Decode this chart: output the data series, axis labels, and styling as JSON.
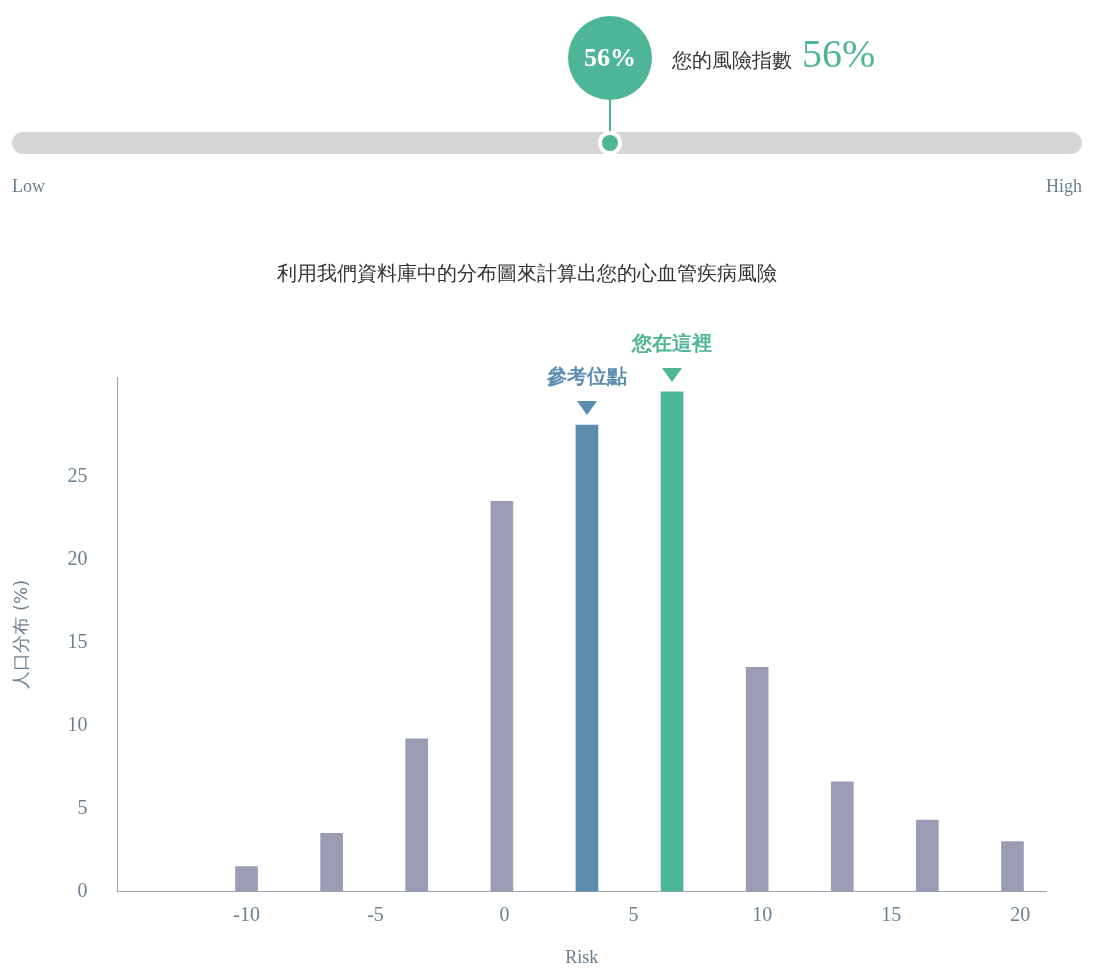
{
  "chart_data": [
    {
      "type": "other",
      "title": "您的風險指數",
      "values": [
        56
      ],
      "value_labels": [
        "56%"
      ],
      "colors": [
        "#4fb597"
      ],
      "annotations": [
        "Low",
        "High"
      ]
    },
    {
      "type": "bar",
      "title": "利用我們資料庫中的分布圖來計算出您的心血管疾病風險",
      "xlabel": "Risk",
      "ylabel": "人口分布 (%)",
      "x": [
        -10,
        -6.7,
        -3.4,
        -0.1,
        3.2,
        6.5,
        9.8,
        13.1,
        16.4,
        19.7
      ],
      "values": [
        1.5,
        3.5,
        9.2,
        23.5,
        28.1,
        30.1,
        13.5,
        6.6,
        4.3,
        3.0
      ],
      "colors": [
        "#9a9cb3",
        "#9a9cb3",
        "#9a9cb3",
        "#9a9cb3",
        "#5b8db0",
        "#4fb597",
        "#9a9cb3",
        "#9a9cb3",
        "#9a9cb3",
        "#9a9cb3"
      ],
      "xlim": [
        -15,
        21
      ],
      "xticks": [
        -10,
        -5,
        0,
        5,
        10,
        15,
        20
      ],
      "ylim": [
        0,
        31
      ],
      "yticks": [
        0,
        5,
        10,
        15,
        20,
        25
      ],
      "grid": false,
      "legend": false,
      "annotations": [
        {
          "text": "參考位點",
          "x": 3.2,
          "y": 28.1
        },
        {
          "text": "您在這裡",
          "x": 6.5,
          "y": 30.1
        }
      ]
    }
  ]
}
